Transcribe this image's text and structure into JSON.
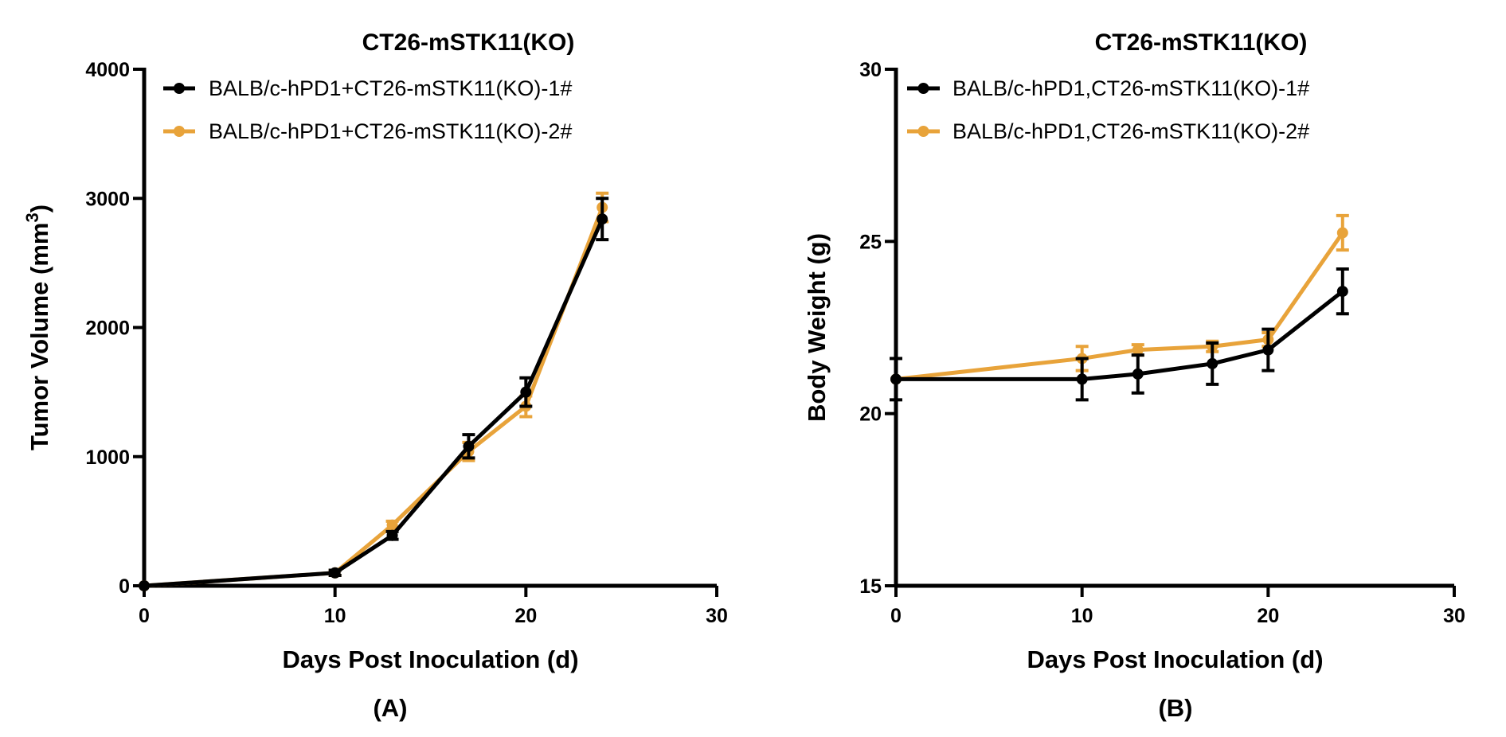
{
  "colors": {
    "series1": "#000000",
    "series2": "#E8A33A",
    "axis": "#000000"
  },
  "chart_data": [
    {
      "id": "A",
      "type": "line",
      "title": "CT26-mSTK11(KO)",
      "xlabel": "Days Post Inoculation (d)",
      "ylabel": "Tumor Volume (mm",
      "ylabel_sup": "3",
      "ylabel_end": ")",
      "caption": "(A)",
      "xlim": [
        0,
        30
      ],
      "ylim": [
        0,
        4000
      ],
      "xticks": [
        0,
        10,
        20,
        30
      ],
      "yticks": [
        0,
        1000,
        2000,
        3000,
        4000
      ],
      "series": [
        {
          "name": "BALB/c-hPD1+CT26-mSTK11(KO)-1#",
          "color": "#000000",
          "x": [
            0,
            10,
            13,
            17,
            20,
            24
          ],
          "y": [
            0,
            100,
            390,
            1080,
            1500,
            2840
          ],
          "err": [
            0,
            20,
            30,
            90,
            110,
            160
          ]
        },
        {
          "name": "BALB/c-hPD1+CT26-mSTK11(KO)-2#",
          "color": "#E8A33A",
          "x": [
            0,
            10,
            13,
            17,
            20,
            24
          ],
          "y": [
            0,
            100,
            470,
            1040,
            1390,
            2930
          ],
          "err": [
            0,
            20,
            30,
            70,
            80,
            110
          ]
        }
      ]
    },
    {
      "id": "B",
      "type": "line",
      "title": "CT26-mSTK11(KO)",
      "xlabel": "Days Post Inoculation (d)",
      "ylabel": "Body Weight (g)",
      "ylabel_sup": "",
      "ylabel_end": "",
      "caption": "(B)",
      "xlim": [
        0,
        30
      ],
      "ylim": [
        15,
        30
      ],
      "xticks": [
        0,
        10,
        20,
        30
      ],
      "yticks": [
        15,
        20,
        25,
        30
      ],
      "series": [
        {
          "name": "BALB/c-hPD1,CT26-mSTK11(KO)-1#",
          "color": "#000000",
          "x": [
            0,
            10,
            13,
            17,
            20,
            24
          ],
          "y": [
            21.0,
            21.0,
            21.15,
            21.45,
            21.85,
            23.55
          ],
          "err": [
            0.6,
            0.6,
            0.55,
            0.6,
            0.6,
            0.65
          ]
        },
        {
          "name": "BALB/c-hPD1,CT26-mSTK11(KO)-2#",
          "color": "#E8A33A",
          "x": [
            0,
            10,
            13,
            17,
            20,
            24
          ],
          "y": [
            21.0,
            21.6,
            21.85,
            21.95,
            22.15,
            25.25
          ],
          "err": [
            0.0,
            0.35,
            0.15,
            0.15,
            0.2,
            0.5
          ]
        }
      ]
    }
  ]
}
